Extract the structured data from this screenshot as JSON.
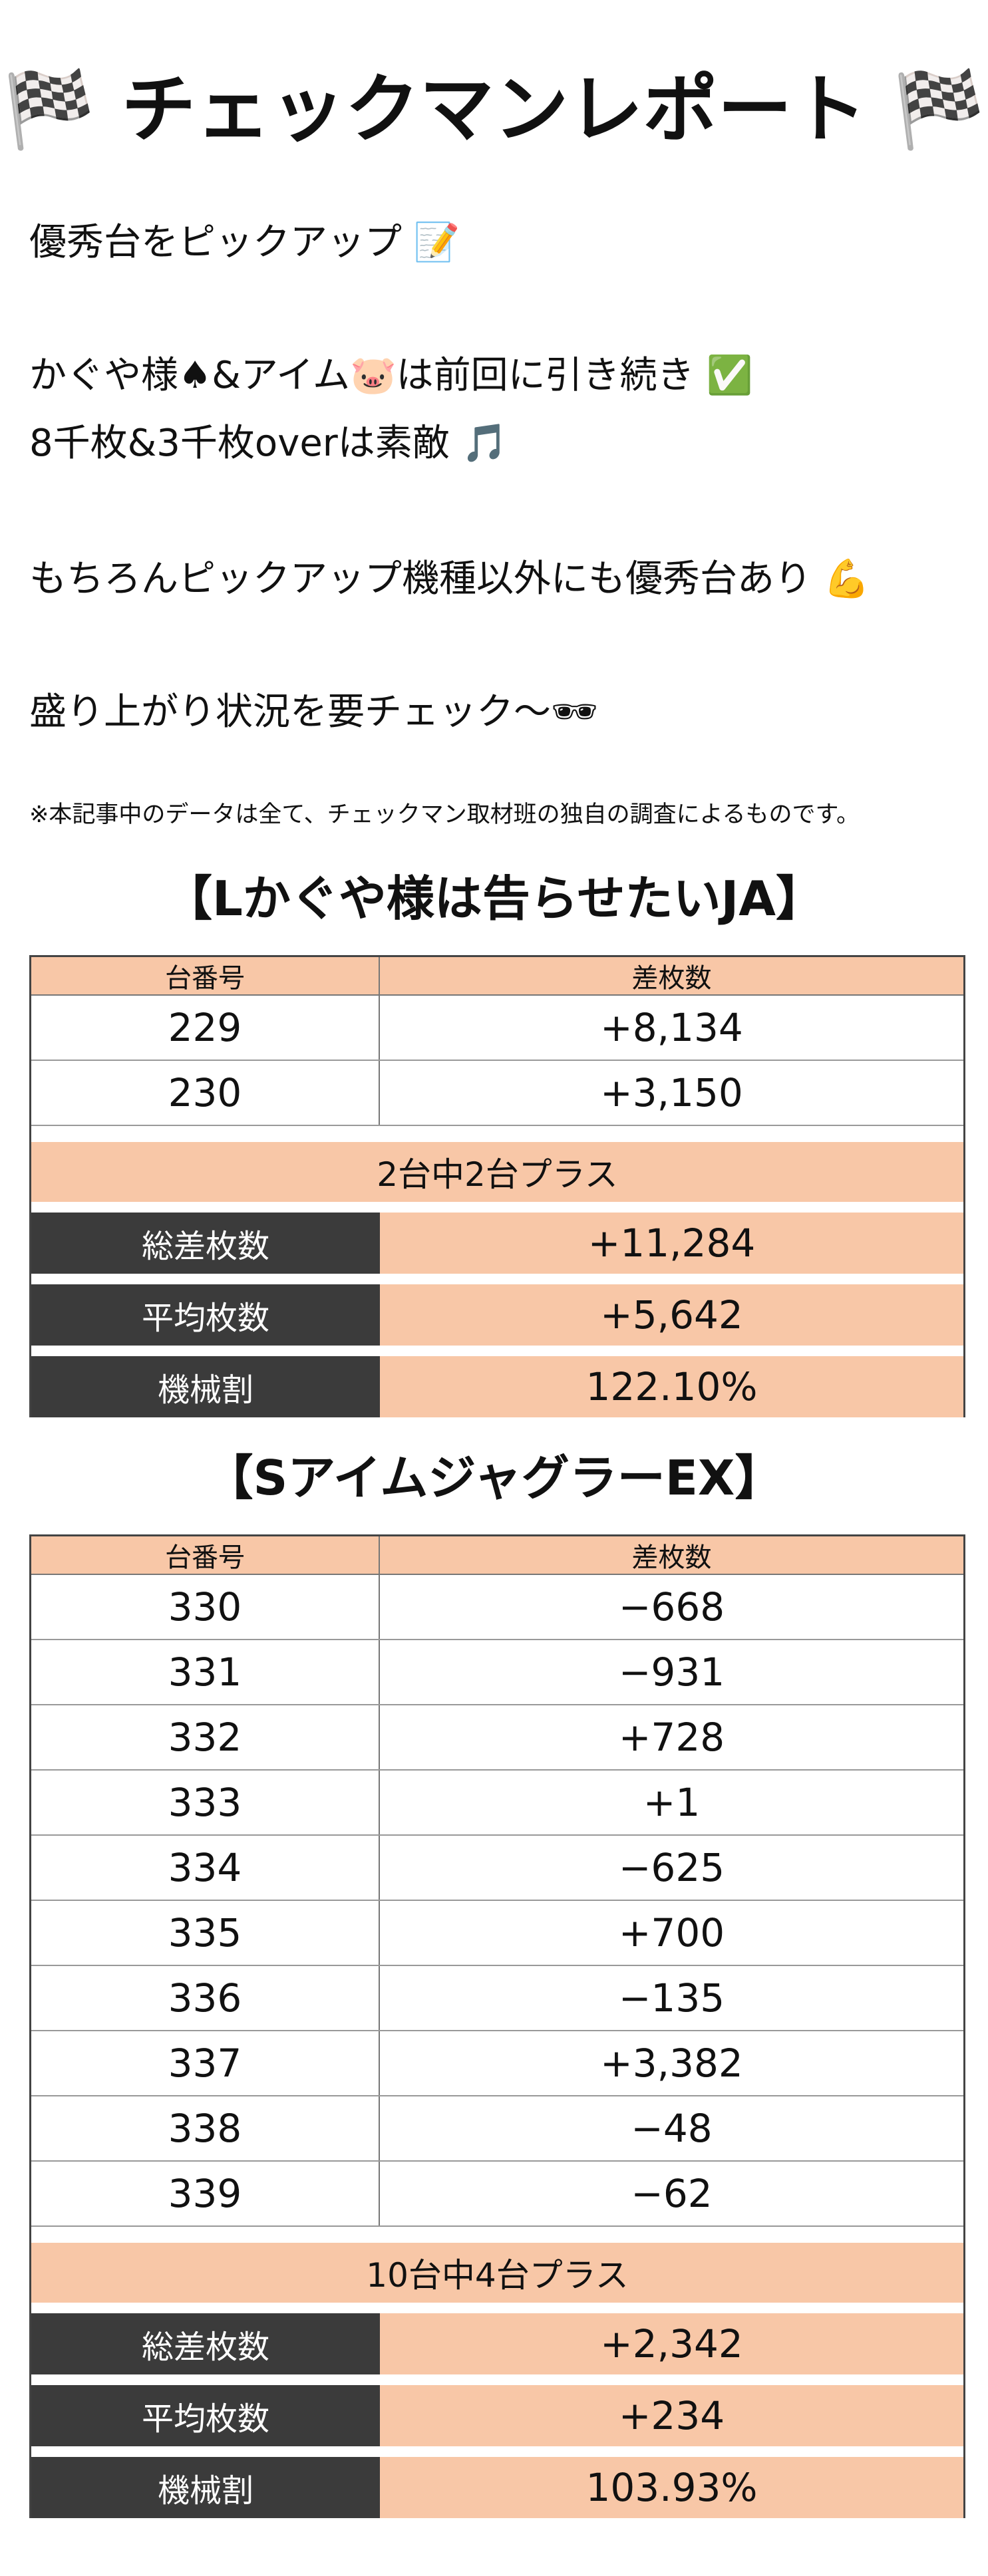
{
  "header": {
    "title": "🏁 チェックマンレポート 🏁"
  },
  "intro": [
    "優秀台をピックアップ 📝",
    "かぐや様♠&アイム🐷は前回に引き続き ✅",
    "8千枚&3千枚overは素敵 🎵",
    "もちろんピックアップ機種以外にも優秀台あり 💪",
    "盛り上がり状況を要チェック〜🕶"
  ],
  "note": "※本記事中のデータは全て、チェックマン取材班の独自の調査によるものです。",
  "sections": [
    {
      "title": "【Lかぐや様は告らせたいJA】",
      "columns": [
        "台番号",
        "差枚数"
      ],
      "rows": [
        [
          "229",
          "+8,134"
        ],
        [
          "230",
          "+3,150"
        ]
      ],
      "summary": "2台中2台プラス",
      "stats": [
        [
          "総差枚数",
          "+11,284"
        ],
        [
          "平均枚数",
          "+5,642"
        ],
        [
          "機械割",
          "122.10%"
        ]
      ]
    },
    {
      "title": "【SアイムジャグラーEX】",
      "columns": [
        "台番号",
        "差枚数"
      ],
      "rows": [
        [
          "330",
          "−668"
        ],
        [
          "331",
          "−931"
        ],
        [
          "332",
          "+728"
        ],
        [
          "333",
          "+1"
        ],
        [
          "334",
          "−625"
        ],
        [
          "335",
          "+700"
        ],
        [
          "336",
          "−135"
        ],
        [
          "337",
          "+3,382"
        ],
        [
          "338",
          "−48"
        ],
        [
          "339",
          "−62"
        ]
      ],
      "summary": "10台中4台プラス",
      "stats": [
        [
          "総差枚数",
          "+2,342"
        ],
        [
          "平均枚数",
          "+234"
        ],
        [
          "機械割",
          "103.93%"
        ]
      ]
    }
  ]
}
